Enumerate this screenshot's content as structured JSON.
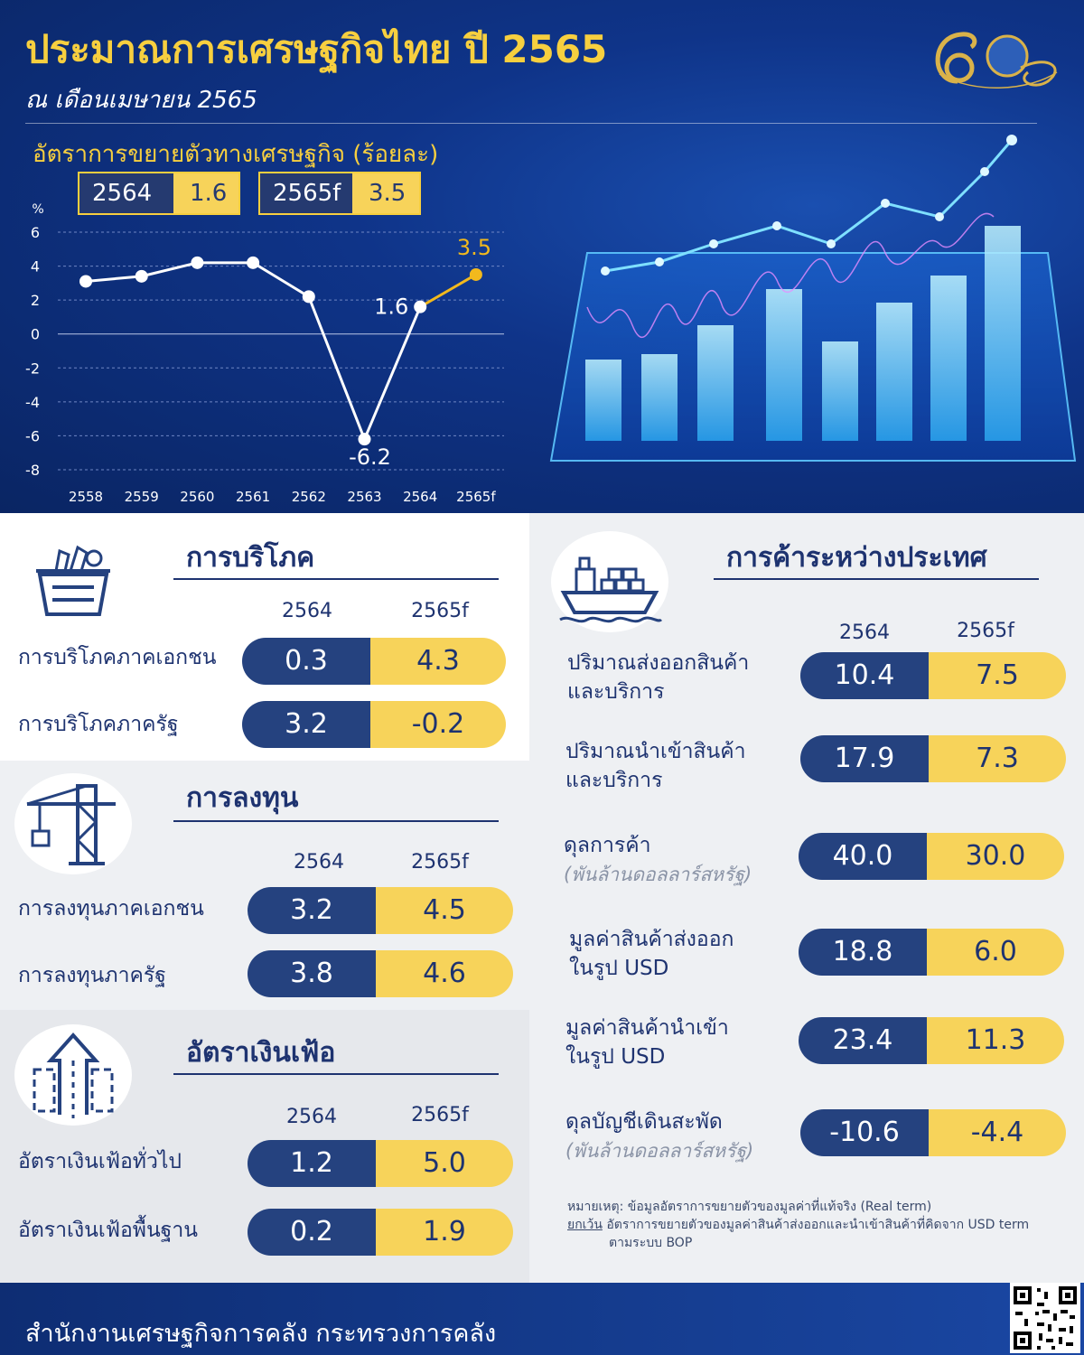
{
  "header": {
    "title": "ประมาณการเศรษฐกิจไทย ปี 2565",
    "subtitle": "ณ เดือนเมษายน 2565"
  },
  "chart_data": {
    "type": "line",
    "title": "อัตราการขยายตัวทางเศรษฐกิจ (ร้อยละ)",
    "ylabel": "%",
    "x": [
      "2558",
      "2559",
      "2560",
      "2561",
      "2562",
      "2563",
      "2564",
      "2565f"
    ],
    "series": [
      {
        "values": [
          3.1,
          3.4,
          4.2,
          4.2,
          2.2,
          -6.2,
          1.6,
          3.5
        ]
      }
    ],
    "ylim": [
      -8,
      6
    ],
    "yticks": [
      "6",
      "4",
      "2",
      "0",
      "-2",
      "-4",
      "-6",
      "-8"
    ],
    "data_labels": [
      {
        "x": "2563",
        "text": "-6.2"
      },
      {
        "x": "2564",
        "text": "1.6"
      },
      {
        "x": "2565f",
        "text": "3.5"
      }
    ],
    "forecast_color": "#f2b91d",
    "line_color": "#ffffff",
    "grid": true
  },
  "highlights": [
    {
      "year": "2564",
      "value": "1.6"
    },
    {
      "year": "2565f",
      "value": "3.5"
    }
  ],
  "consumption": {
    "title": "การบริโภค",
    "icon": "basket-icon",
    "col1": "2564",
    "col2": "2565f",
    "rows": [
      {
        "label": "การบริโภคภาคเอกชน",
        "v1": "0.3",
        "v2": "4.3"
      },
      {
        "label": "การบริโภคภาครัฐ",
        "v1": "3.2",
        "v2": "-0.2"
      }
    ]
  },
  "investment": {
    "title": "การลงทุน",
    "icon": "crane-icon",
    "col1": "2564",
    "col2": "2565f",
    "rows": [
      {
        "label": "การลงทุนภาคเอกชน",
        "v1": "3.2",
        "v2": "4.5"
      },
      {
        "label": "การลงทุนภาครัฐ",
        "v1": "3.8",
        "v2": "4.6"
      }
    ]
  },
  "inflation": {
    "title": "อัตราเงินเฟ้อ",
    "icon": "rising-arrow-icon",
    "col1": "2564",
    "col2": "2565f",
    "rows": [
      {
        "label": "อัตราเงินเฟ้อทั่วไป",
        "v1": "1.2",
        "v2": "5.0"
      },
      {
        "label": "อัตราเงินเฟ้อพื้นฐาน",
        "v1": "0.2",
        "v2": "1.9"
      }
    ]
  },
  "trade": {
    "title": "การค้าระหว่างประเทศ",
    "icon": "cargo-ship-icon",
    "col1": "2564",
    "col2": "2565f",
    "rows": [
      {
        "line1": "ปริมาณส่งออกสินค้า",
        "line2": "และบริการ",
        "sub": "",
        "v1": "10.4",
        "v2": "7.5"
      },
      {
        "line1": "ปริมาณนำเข้าสินค้า",
        "line2": "และบริการ",
        "sub": "",
        "v1": "17.9",
        "v2": "7.3"
      },
      {
        "line1": "ดุลการค้า",
        "line2": "",
        "sub": "(พันล้านดอลลาร์สหรัฐ)",
        "v1": "40.0",
        "v2": "30.0"
      },
      {
        "line1": "มูลค่าสินค้าส่งออก",
        "line2": "ในรูป USD",
        "sub": "",
        "v1": "18.8",
        "v2": "6.0"
      },
      {
        "line1": "มูลค่าสินค้านำเข้า",
        "line2": "ในรูป USD",
        "sub": "",
        "v1": "23.4",
        "v2": "11.3"
      },
      {
        "line1": "ดุลบัญชีเดินสะพัด",
        "line2": "",
        "sub": "(พันล้านดอลลาร์สหรัฐ)",
        "v1": "-10.6",
        "v2": "-4.4"
      }
    ]
  },
  "note": {
    "prefix": "หมายเหตุ:",
    "text": "ข้อมูลอัตราการขยายตัวของมูลค่าที่แท้จริง (Real term)",
    "exception_label": "ยกเว้น",
    "exception_text": "อัตราการขยายตัวของมูลค่าสินค้าส่งออกและนำเข้าสินค้าที่คิดจาก USD term",
    "exception_text2": "ตามระบบ BOP"
  },
  "footer": {
    "text": "สำนักงานเศรษฐกิจการคลัง กระทรวงการคลัง"
  },
  "colors": {
    "navy": "#1e3370",
    "pill_dark": "#25427f",
    "pill_yellow": "#f7d35a",
    "title_yellow": "#f7cf3f"
  }
}
